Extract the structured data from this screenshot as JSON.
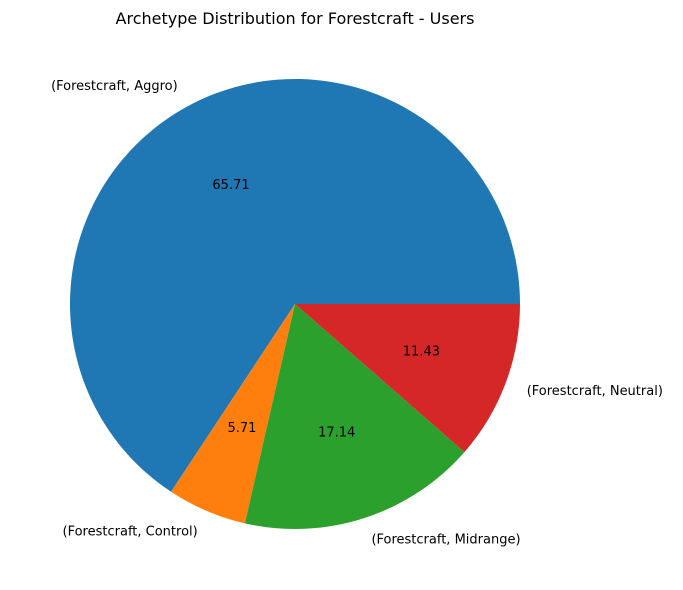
{
  "chart_data": {
    "type": "pie",
    "title": "Archetype Distribution for Forestcraft - Users",
    "labels": [
      "(Forestcraft, Aggro)",
      "(Forestcraft, Control)",
      "(Forestcraft, Midrange)",
      "(Forestcraft, Neutral)"
    ],
    "values": [
      65.71,
      5.71,
      17.14,
      11.43
    ],
    "value_labels": [
      "65.71",
      "5.71",
      "17.14",
      "11.43"
    ],
    "colors": [
      "#1f77b4",
      "#ff7f0e",
      "#2ca02c",
      "#d62728"
    ],
    "start_angle": "3 o'clock",
    "direction": "counterclockwise",
    "legend": "none"
  }
}
